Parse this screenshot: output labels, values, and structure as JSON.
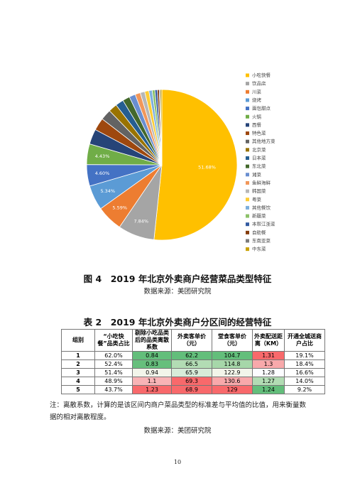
{
  "chart_data": {
    "type": "pie",
    "categories": [
      "小吃快餐",
      "饮品店",
      "川菜",
      "烧烤",
      "面包甜点",
      "火锅",
      "西餐",
      "特色菜",
      "其他地方菜",
      "北京菜",
      "日本菜",
      "东北菜",
      "湘菜",
      "鱼鲜海鲜",
      "韩国菜",
      "粤菜",
      "其他餐饮",
      "新疆菜",
      "本帮江浙菜",
      "自助餐",
      "东南亚菜",
      "中东菜"
    ],
    "values": [
      51.68,
      7.84,
      5.59,
      5.34,
      4.6,
      4.43,
      3.26,
      2.69,
      2.31,
      1.86,
      1.74,
      1.55,
      1.33,
      1.13,
      0.98,
      0.89,
      0.71,
      0.58,
      0.52,
      0.41,
      0.23,
      0.33
    ],
    "value_labels": [
      "51.68%",
      "7.84%",
      "5.59%",
      "5.34%",
      "4.60%",
      "4.43%",
      null,
      null,
      null,
      null,
      null,
      null,
      null,
      null,
      null,
      null,
      null,
      null,
      null,
      null,
      null,
      null
    ],
    "colors": [
      "#FFC000",
      "#A5A5A5",
      "#ED7D31",
      "#5B9BD5",
      "#4472C4",
      "#70AD47",
      "#264478",
      "#9E480E",
      "#636363",
      "#997300",
      "#255E91",
      "#43682B",
      "#698ED0",
      "#F1975A",
      "#B7B7B7",
      "#FFCD33",
      "#7CAFDD",
      "#8CC168",
      "#335AA1",
      "#843C0C",
      "#7B7B7B",
      "#C9A100"
    ]
  },
  "figure_caption": "图 4　2019 年北京外卖商户经营菜品类型特征",
  "figure_source": "数据来源：美团研究院",
  "table_caption": "表 2　2019 年北京外卖商户分区间的经营特征",
  "table": {
    "headers": [
      "组别",
      "“小吃快餐”品类占比",
      "剔除小吃品类后的品类离散系数",
      "外卖客单价（元）",
      "堂食客单价（元）",
      "外卖配送距离（KM）",
      "开通全城送商户占比"
    ],
    "rows": [
      [
        "1",
        "62.0%",
        "0.84",
        "62.2",
        "104.7",
        "1.31",
        "19.1%"
      ],
      [
        "2",
        "52.4%",
        "0.83",
        "66.5",
        "114.8",
        "1.3",
        "18.4%"
      ],
      [
        "3",
        "51.4%",
        "0.94",
        "65.9",
        "122.9",
        "1.28",
        "16.6%"
      ],
      [
        "4",
        "48.9%",
        "1.1",
        "69.3",
        "130.6",
        "1.27",
        "14.0%"
      ],
      [
        "5",
        "43.7%",
        "1.23",
        "68.9",
        "129",
        "1.24",
        "9.2%"
      ]
    ]
  },
  "note": "注：离散系数，计算的是该区间内商户菜品类型的标准差与平均值的比值，用来衡量数据的相对离散程度。",
  "table_source": "数据来源：美团研究院",
  "page_number": "10"
}
